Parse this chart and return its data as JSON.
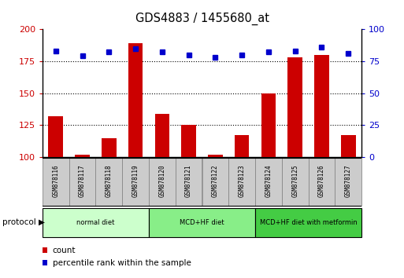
{
  "title": "GDS4883 / 1455680_at",
  "samples": [
    "GSM878116",
    "GSM878117",
    "GSM878118",
    "GSM878119",
    "GSM878120",
    "GSM878121",
    "GSM878122",
    "GSM878123",
    "GSM878124",
    "GSM878125",
    "GSM878126",
    "GSM878127"
  ],
  "bar_values": [
    132,
    102,
    115,
    189,
    134,
    125,
    102,
    117,
    150,
    178,
    180,
    117
  ],
  "percentile_values": [
    83,
    79,
    82,
    85,
    82,
    80,
    78,
    80,
    82,
    83,
    86,
    81
  ],
  "bar_color": "#cc0000",
  "percentile_color": "#0000cc",
  "ylim_left": [
    100,
    200
  ],
  "ylim_right": [
    0,
    100
  ],
  "yticks_left": [
    100,
    125,
    150,
    175,
    200
  ],
  "yticks_right": [
    0,
    25,
    50,
    75,
    100
  ],
  "groups": [
    {
      "label": "normal diet",
      "start": 0,
      "end": 4,
      "color": "#ccffcc"
    },
    {
      "label": "MCD+HF diet",
      "start": 4,
      "end": 8,
      "color": "#88ee88"
    },
    {
      "label": "MCD+HF diet with metformin",
      "start": 8,
      "end": 12,
      "color": "#44cc44"
    }
  ],
  "protocol_label": "protocol",
  "legend_count_label": "count",
  "legend_pct_label": "percentile rank within the sample",
  "bar_baseline": 100,
  "label_bg_color": "#cccccc",
  "label_border_color": "#888888"
}
